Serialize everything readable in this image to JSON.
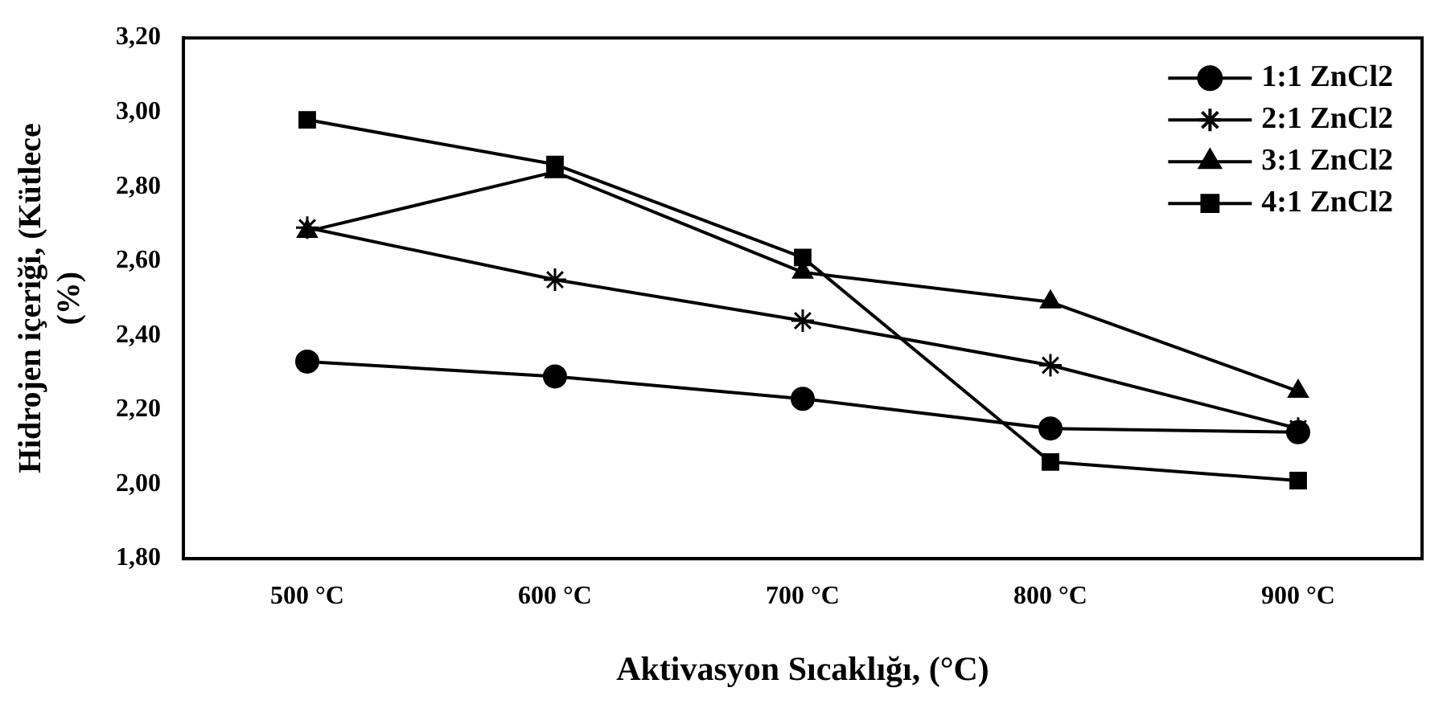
{
  "chart_data": {
    "type": "line",
    "xlabel": "Aktivasyon Sıcaklığı, (°C)",
    "ylabel": "Hidrojen içeriği, (Kütlece (%)",
    "categories": [
      "500 °C",
      "600 °C",
      "700 °C",
      "800 °C",
      "900 °C"
    ],
    "ylim": [
      1.8,
      3.2
    ],
    "yticks": [
      {
        "value": 1.8,
        "label": "1,80"
      },
      {
        "value": 2.0,
        "label": "2,00"
      },
      {
        "value": 2.2,
        "label": "2,20"
      },
      {
        "value": 2.4,
        "label": "2,40"
      },
      {
        "value": 2.6,
        "label": "2,60"
      },
      {
        "value": 2.8,
        "label": "2,80"
      },
      {
        "value": 3.0,
        "label": "3,00"
      },
      {
        "value": 3.2,
        "label": "3,20"
      }
    ],
    "grid": false,
    "legend": "top right",
    "line_style": "solid",
    "series": [
      {
        "name": "1:1 ZnCl2",
        "color": "#000000",
        "marker": "circle",
        "values": [
          2.33,
          2.29,
          2.23,
          2.15,
          2.14
        ]
      },
      {
        "name": "2:1 ZnCl2",
        "color": "#000000",
        "marker": "cross",
        "values": [
          2.69,
          2.55,
          2.44,
          2.32,
          2.15
        ]
      },
      {
        "name": "3:1 ZnCl2",
        "color": "#000000",
        "marker": "triangle",
        "values": [
          2.68,
          2.84,
          2.57,
          2.49,
          2.25
        ]
      },
      {
        "name": "4:1 ZnCl2",
        "color": "#000000",
        "marker": "square",
        "values": [
          2.98,
          2.86,
          2.61,
          2.06,
          2.01
        ]
      }
    ]
  }
}
